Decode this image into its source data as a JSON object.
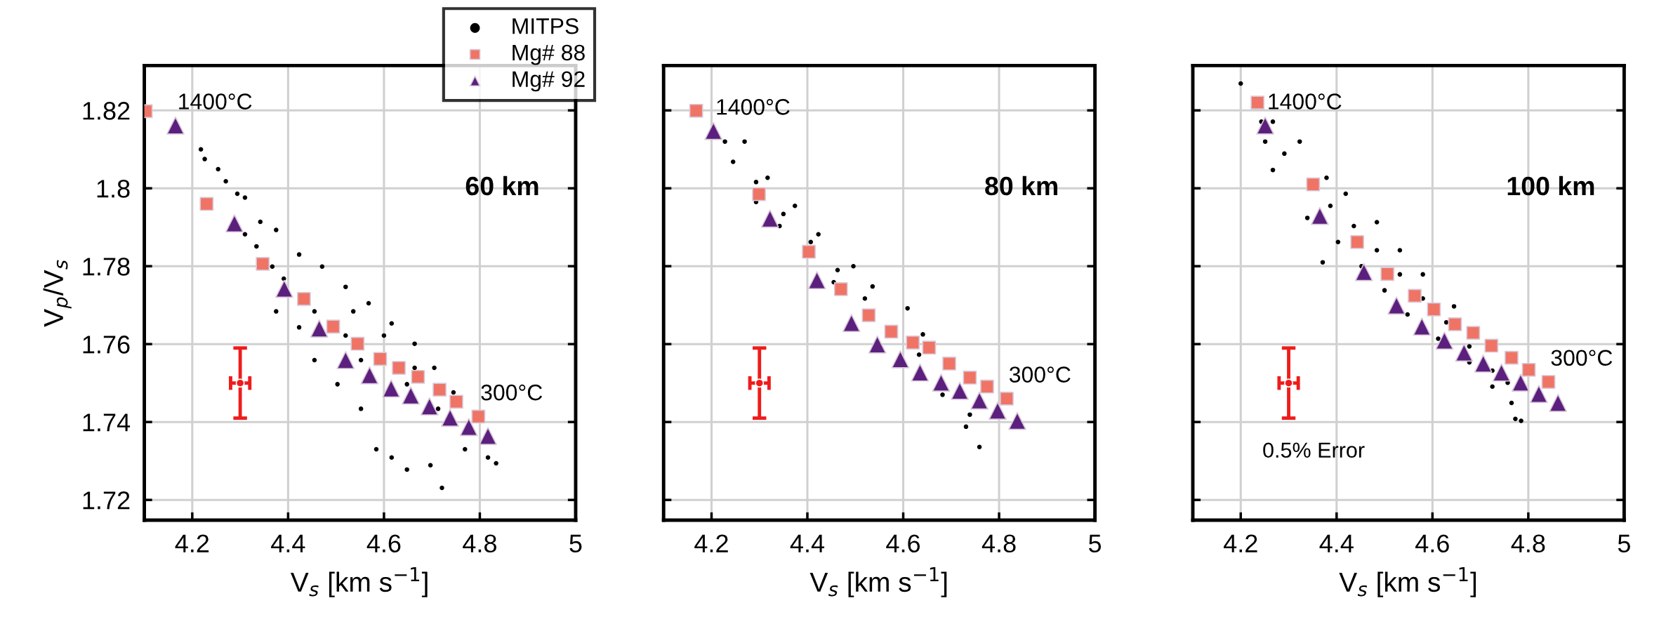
{
  "chart_data": [
    {
      "type": "scatter",
      "xlabel": "V$_{s}$ [km s$^{−1}$]",
      "ylabel": "V$_{p}$/V$_{s}$",
      "xlim": [
        4.1,
        5
      ],
      "ylim": [
        1.7148,
        1.8315
      ],
      "xticks": [
        4.2,
        4.4,
        4.6,
        4.8,
        5
      ],
      "yticks": [
        1.72,
        1.74,
        1.76,
        1.78,
        1.8,
        1.82
      ],
      "grid": true,
      "legend": "top right",
      "series": [
        {
          "name": "MITPS",
          "marker": "circle",
          "color": "#000000",
          "x": [
            4.218,
            4.226,
            4.254,
            4.27,
            4.294,
            4.31,
            4.342,
            4.375,
            4.423,
            4.471,
            4.52,
            4.568,
            4.616,
            4.664,
            4.705,
            4.745,
            4.834,
            4.31,
            4.367,
            4.375,
            4.423,
            4.455,
            4.503,
            4.552,
            4.584,
            4.616,
            4.648,
            4.697,
            4.721,
            4.769,
            4.817,
            4.334,
            4.391,
            4.455,
            4.52,
            4.648,
            4.713,
            4.552,
            4.536,
            4.6,
            4.664
          ],
          "values": [
            1.81,
            1.8075,
            1.8049,
            1.8018,
            1.7986,
            1.7976,
            1.7914,
            1.7893,
            1.783,
            1.7799,
            1.7747,
            1.7705,
            1.7653,
            1.7601,
            1.7539,
            1.7476,
            1.7294,
            1.7882,
            1.7799,
            1.7684,
            1.7643,
            1.7559,
            1.7497,
            1.7434,
            1.733,
            1.7309,
            1.7278,
            1.7289,
            1.7231,
            1.733,
            1.7309,
            1.7851,
            1.7768,
            1.7684,
            1.7622,
            1.7497,
            1.7434,
            1.7559,
            1.7684,
            1.7622,
            1.7539
          ]
        },
        {
          "name": "Mg# 88",
          "marker": "square",
          "color": "#f07465",
          "x": [
            4.103,
            4.23,
            4.347,
            4.433,
            4.494,
            4.545,
            4.592,
            4.631,
            4.671,
            4.716,
            4.751,
            4.797
          ],
          "values": [
            1.8198,
            1.796,
            1.7806,
            1.7716,
            1.7645,
            1.7601,
            1.7562,
            1.7539,
            1.7516,
            1.7483,
            1.7452,
            1.7414
          ]
        },
        {
          "name": "Mg# 92",
          "marker": "triangle",
          "color": "#5b1f7e",
          "x": [
            4.165,
            4.288,
            4.392,
            4.465,
            4.52,
            4.57,
            4.615,
            4.656,
            4.695,
            4.738,
            4.777,
            4.817
          ],
          "values": [
            1.8161,
            1.791,
            1.7742,
            1.764,
            1.7559,
            1.752,
            1.7486,
            1.7468,
            1.744,
            1.7411,
            1.7387,
            1.7364
          ]
        },
        {
          "marker": "circle",
          "color": "#ee1c1c",
          "x": [
            4.3
          ],
          "values": [
            1.75
          ],
          "errors": [
            0.009
          ],
          "xerrors": [
            0.02
          ]
        }
      ],
      "annotations": [
        "60 km",
        {
          "text": "1400°C",
          "x": 4.165,
          "y": 1.8161
        },
        {
          "text": "300°C",
          "x": 4.797,
          "y": 1.7414
        }
      ]
    },
    {
      "type": "scatter",
      "xlabel": "V$_{s}$ [km s$^{−1}$]",
      "xlim": [
        4.1,
        5
      ],
      "ylim": [
        1.7148,
        1.8315
      ],
      "xticks": [
        4.2,
        4.4,
        4.6,
        4.8,
        5
      ],
      "yticks": [
        1.72,
        1.74,
        1.76,
        1.78,
        1.8,
        1.82
      ],
      "grid": true,
      "tick_labels": "x",
      "series": [
        {
          "marker": "circle",
          "color": "#000000",
          "x": [
            4.269,
            4.317,
            4.374,
            4.423,
            4.496,
            4.536,
            4.609,
            4.641,
            4.245,
            4.293,
            4.342,
            4.455,
            4.682,
            4.731,
            4.759,
            4.228,
            4.293,
            4.35,
            4.407,
            4.463,
            4.52,
            4.633,
            4.739
          ],
          "values": [
            1.812,
            1.8027,
            1.7955,
            1.7882,
            1.78,
            1.7748,
            1.7692,
            1.7625,
            1.8068,
            1.7965,
            1.7903,
            1.7759,
            1.747,
            1.7388,
            1.7336,
            1.812,
            1.8016,
            1.7934,
            1.7862,
            1.779,
            1.7717,
            1.7573,
            1.7419
          ]
        },
        {
          "marker": "square",
          "color": "#f07465",
          "x": [
            4.168,
            4.299,
            4.403,
            4.47,
            4.528,
            4.575,
            4.62,
            4.654,
            4.696,
            4.739,
            4.775,
            4.816
          ],
          "values": [
            1.8199,
            1.7985,
            1.7837,
            1.7741,
            1.7674,
            1.7632,
            1.7604,
            1.7591,
            1.755,
            1.7514,
            1.7491,
            1.746
          ]
        },
        {
          "marker": "triangle",
          "color": "#5b1f7e",
          "x": [
            4.204,
            4.322,
            4.42,
            4.492,
            4.546,
            4.594,
            4.635,
            4.679,
            4.718,
            4.759,
            4.797,
            4.838
          ],
          "values": [
            1.8147,
            1.7922,
            1.7764,
            1.7654,
            1.7599,
            1.7561,
            1.7527,
            1.7501,
            1.748,
            1.7455,
            1.7429,
            1.7403
          ]
        },
        {
          "marker": "circle",
          "color": "#ee1c1c",
          "x": [
            4.3
          ],
          "values": [
            1.75
          ],
          "errors": [
            0.009
          ],
          "xerrors": [
            0.02
          ]
        }
      ],
      "annotations": [
        "80 km",
        {
          "text": "1400°C",
          "x": 4.204,
          "y": 1.8147
        },
        {
          "text": "300°C",
          "x": 4.816,
          "y": 1.746
        }
      ]
    },
    {
      "type": "scatter",
      "xlabel": "V$_{s}$ [km s$^{−1}$]",
      "xlim": [
        4.1,
        5
      ],
      "ylim": [
        1.7148,
        1.8315
      ],
      "xticks": [
        4.2,
        4.4,
        4.6,
        4.8,
        5
      ],
      "yticks": [
        1.72,
        1.74,
        1.76,
        1.78,
        1.8,
        1.82
      ],
      "grid": true,
      "tick_labels": "x",
      "series": [
        {
          "marker": "circle",
          "color": "#000000",
          "x": [
            4.2,
            4.267,
            4.323,
            4.379,
            4.419,
            4.484,
            4.532,
            4.58,
            4.645,
            4.757,
            4.785,
            4.251,
            4.267,
            4.339,
            4.371,
            4.403,
            4.452,
            4.5,
            4.548,
            4.612,
            4.677,
            4.725,
            4.773,
            4.243,
            4.291,
            4.387,
            4.436,
            4.484,
            4.532,
            4.58,
            4.629,
            4.677,
            4.725,
            4.765
          ],
          "values": [
            1.8269,
            1.8171,
            1.812,
            1.8027,
            1.7986,
            1.7913,
            1.7841,
            1.7779,
            1.7697,
            1.7501,
            1.7403,
            1.812,
            1.8047,
            1.7924,
            1.781,
            1.7862,
            1.78,
            1.7738,
            1.7676,
            1.7614,
            1.7553,
            1.7491,
            1.7408,
            1.8171,
            1.8089,
            1.7955,
            1.7903,
            1.7841,
            1.7779,
            1.7717,
            1.7656,
            1.7594,
            1.7532,
            1.7449
          ]
        },
        {
          "marker": "square",
          "color": "#f07465",
          "x": [
            4.235,
            4.351,
            4.443,
            4.506,
            4.563,
            4.603,
            4.647,
            4.685,
            4.723,
            4.765,
            4.801,
            4.842
          ],
          "values": [
            1.822,
            1.801,
            1.7862,
            1.778,
            1.7724,
            1.7689,
            1.7651,
            1.7629,
            1.7596,
            1.7565,
            1.7534,
            1.7503
          ]
        },
        {
          "marker": "triangle",
          "color": "#5b1f7e",
          "x": [
            4.251,
            4.365,
            4.457,
            4.525,
            4.578,
            4.625,
            4.666,
            4.706,
            4.744,
            4.784,
            4.822,
            4.862
          ],
          "values": [
            1.8161,
            1.7929,
            1.7785,
            1.7699,
            1.7645,
            1.7609,
            1.7578,
            1.755,
            1.7527,
            1.7501,
            1.7472,
            1.7449
          ]
        },
        {
          "marker": "circle",
          "color": "#ee1c1c",
          "x": [
            4.3
          ],
          "values": [
            1.75
          ],
          "errors": [
            0.009
          ],
          "xerrors": [
            0.02
          ]
        }
      ],
      "annotations": [
        "100 km",
        "0.5% Error",
        {
          "text": "1400°C",
          "x": 4.251,
          "y": 1.8161
        },
        {
          "text": "300°C",
          "x": 4.842,
          "y": 1.7503
        }
      ]
    }
  ]
}
